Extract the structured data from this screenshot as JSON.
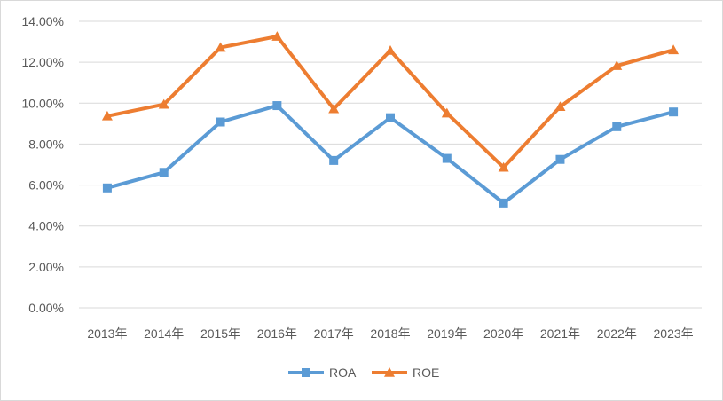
{
  "chart_data": {
    "type": "line",
    "categories": [
      "2013年",
      "2014年",
      "2015年",
      "2016年",
      "2017年",
      "2018年",
      "2019年",
      "2020年",
      "2021年",
      "2022年",
      "2023年"
    ],
    "series": [
      {
        "name": "ROA",
        "color": "#5b9bd5",
        "marker": "square",
        "values": [
          5.86,
          6.62,
          9.08,
          9.88,
          7.2,
          9.29,
          7.3,
          5.12,
          7.25,
          8.85,
          9.57
        ]
      },
      {
        "name": "ROE",
        "color": "#ed7d31",
        "marker": "triangle",
        "values": [
          9.37,
          9.94,
          12.72,
          13.26,
          9.72,
          12.57,
          9.51,
          6.86,
          9.83,
          11.83,
          12.6
        ]
      }
    ],
    "yticks": [
      "0.00%",
      "2.00%",
      "4.00%",
      "6.00%",
      "8.00%",
      "10.00%",
      "12.00%",
      "14.00%"
    ],
    "ylim": [
      0,
      14
    ],
    "grid": true,
    "legend_position": "bottom",
    "title": "",
    "xlabel": "",
    "ylabel": ""
  }
}
